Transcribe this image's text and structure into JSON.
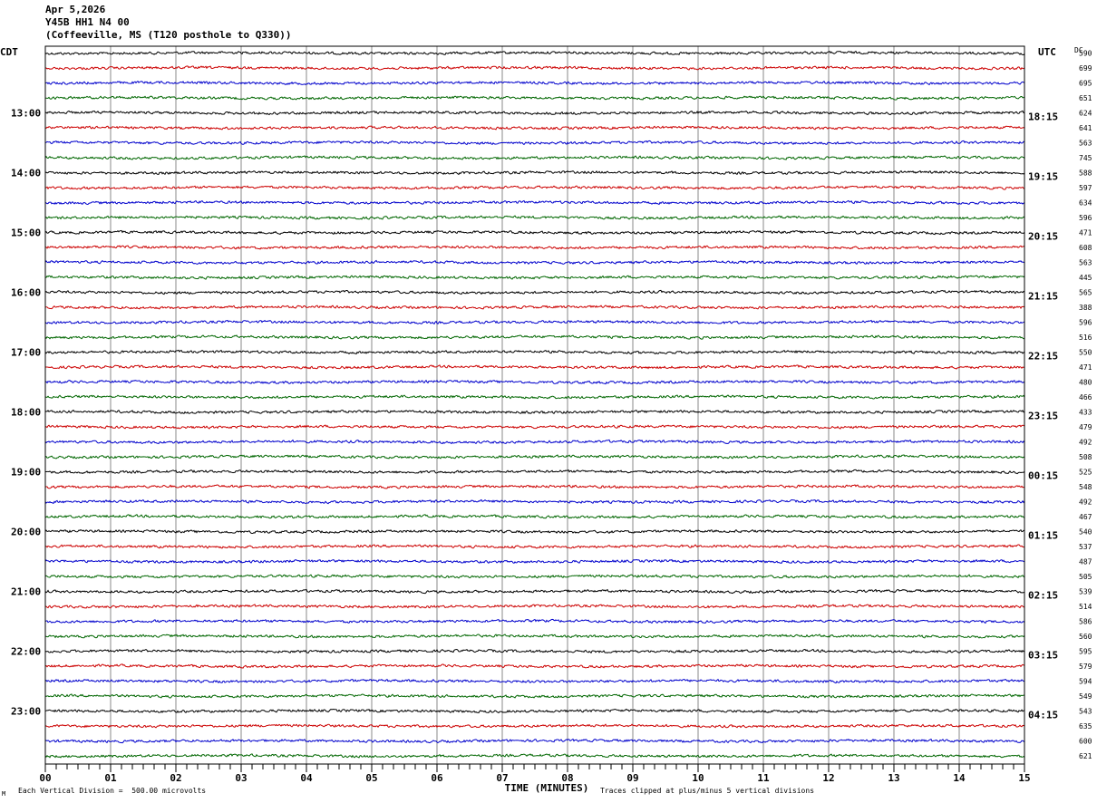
{
  "header": {
    "date": "Apr 5,2026",
    "station": "Y45B HH1 N4 00",
    "location": "(Coffeeville, MS (T120 posthole to Q330))"
  },
  "chart_data": {
    "type": "line",
    "left_axis_label": "CDT",
    "right_axis_label": "UTC",
    "dc_label": "DC",
    "xlabel": "TIME (MINUTES)",
    "x_ticks": [
      "00",
      "01",
      "02",
      "03",
      "04",
      "05",
      "06",
      "07",
      "08",
      "09",
      "10",
      "11",
      "12",
      "13",
      "14",
      "15"
    ],
    "xlim": [
      0,
      15
    ],
    "trace_colors": [
      "#000000",
      "#cc0000",
      "#0000cc",
      "#006600"
    ],
    "left_hour_labels": [
      "13:00",
      "14:00",
      "15:00",
      "16:00",
      "17:00",
      "18:00",
      "19:00",
      "20:00",
      "21:00",
      "22:00",
      "23:00"
    ],
    "right_hour_labels": [
      "18:15",
      "19:15",
      "20:15",
      "21:15",
      "22:15",
      "23:15",
      "00:15",
      "01:15",
      "02:15",
      "03:15",
      "04:15"
    ],
    "dc_offsets": [
      "590",
      "699",
      "695",
      "651",
      "624",
      "641",
      "563",
      "745",
      "588",
      "597",
      "634",
      "596",
      "471",
      "608",
      "563",
      "445",
      "565",
      "388",
      "596",
      "516",
      "550",
      "471",
      "480",
      "466",
      "433",
      "479",
      "492",
      "508",
      "525",
      "548",
      "492",
      "467",
      "540",
      "537",
      "487",
      "505",
      "539",
      "514",
      "586",
      "560",
      "595",
      "579",
      "594",
      "549",
      "543",
      "635",
      "600",
      "621"
    ],
    "footer_left": "Each Vertical Division =  500.00 microvolts",
    "footer_right": "Traces clipped at plus/minus 5 vertical divisions",
    "footer_mark": "M"
  }
}
